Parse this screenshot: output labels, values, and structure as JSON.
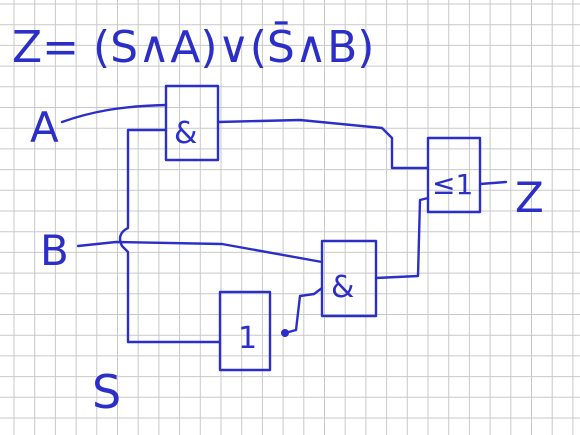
{
  "formula": "Z= (S∧A)∨(S̄∧B)",
  "inputs": {
    "a": "A",
    "b": "B",
    "s": "S"
  },
  "output": "Z",
  "gates": {
    "and_top": "&",
    "and_bottom": "&",
    "or": "≤1",
    "not": "1"
  },
  "colors": {
    "ink": "#2b2fc8",
    "grid": "#c9c9c9",
    "paper": "#ffffff"
  }
}
